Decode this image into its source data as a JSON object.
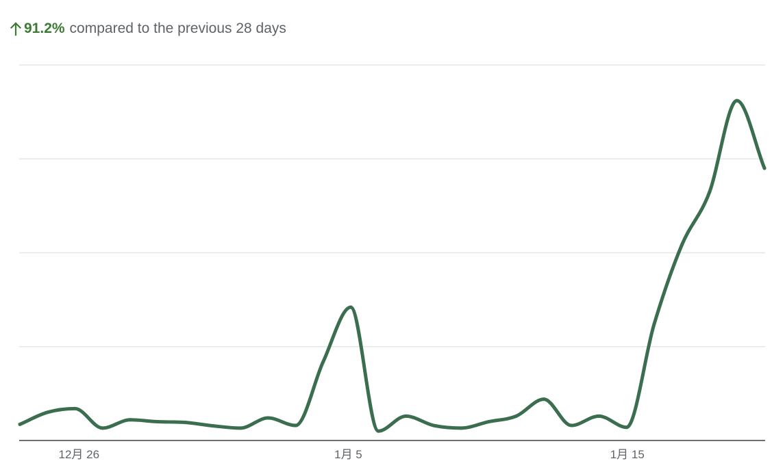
{
  "header": {
    "change_value": "91.2%",
    "change_text": "compared to the previous 28 days",
    "arrow_icon": "arrow-up-icon",
    "positive_color": "#3c7a34",
    "text_color": "#5f6368"
  },
  "chart_data": {
    "type": "line",
    "title": "",
    "xlabel": "",
    "ylabel": "",
    "x_tick_labels": [
      "12月 26",
      "1月 5",
      "1月 15"
    ],
    "x_tick_positions": [
      2,
      12,
      22
    ],
    "x_range": [
      0,
      28
    ],
    "ylim": [
      0,
      100
    ],
    "grid": true,
    "y_gridlines": [
      0,
      25,
      50,
      75,
      100
    ],
    "show_y_tick_labels": false,
    "line_color": "#3b6e4f",
    "series": [
      {
        "name": "",
        "values": [
          [
            0,
            4.3
          ],
          [
            1,
            7.5
          ],
          [
            2,
            8.5
          ],
          [
            3,
            3.3
          ],
          [
            4,
            5.5
          ],
          [
            5,
            5.0
          ],
          [
            6,
            4.8
          ],
          [
            7,
            3.9
          ],
          [
            8,
            3.3
          ],
          [
            9,
            6.0
          ],
          [
            10,
            4.0
          ],
          [
            11,
            21.0
          ],
          [
            12,
            35.5
          ],
          [
            13,
            2.5
          ],
          [
            14,
            6.5
          ],
          [
            15,
            4.0
          ],
          [
            16,
            3.3
          ],
          [
            17,
            5.0
          ],
          [
            18,
            6.5
          ],
          [
            19,
            11.0
          ],
          [
            20,
            4.0
          ],
          [
            21,
            6.5
          ],
          [
            22,
            3.5
          ],
          [
            23,
            31.0
          ],
          [
            24,
            52.0
          ],
          [
            25,
            66.0
          ],
          [
            26,
            90.5
          ],
          [
            27,
            72.5
          ]
        ]
      }
    ]
  }
}
